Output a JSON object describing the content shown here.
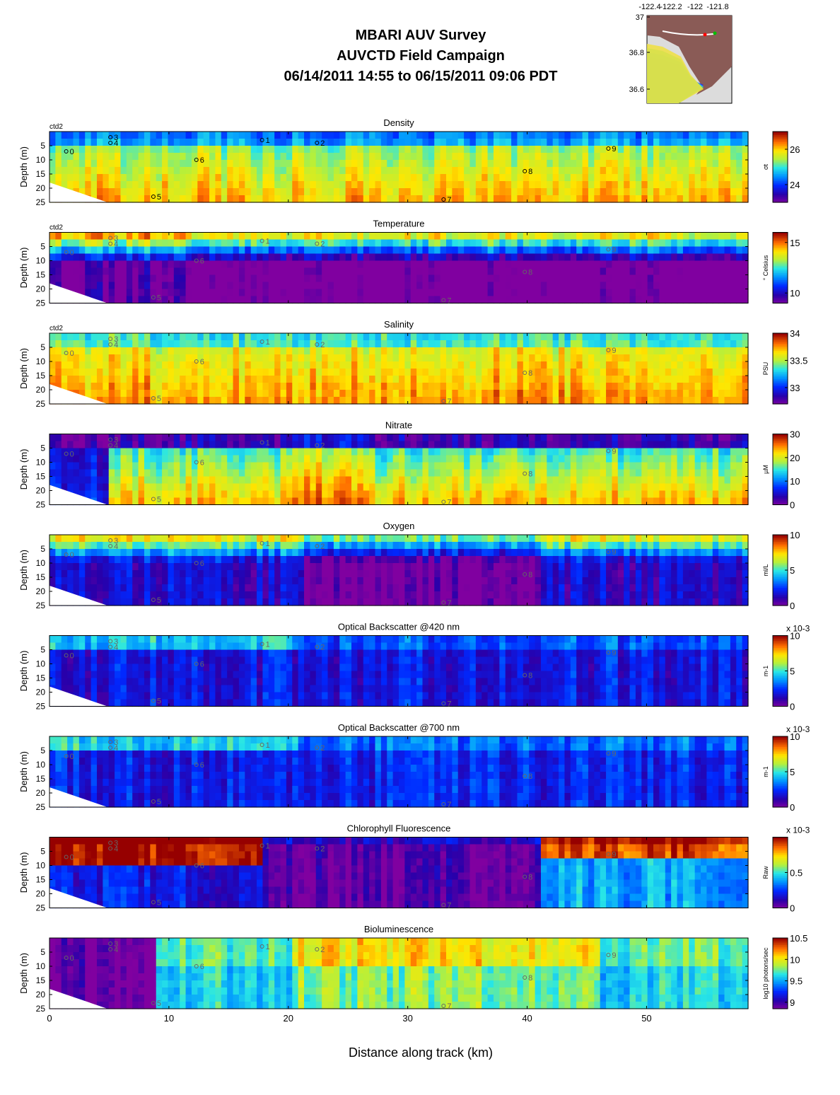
{
  "header": {
    "title_line1": "MBARI AUV Survey",
    "title_line2": "AUVCTD Field Campaign",
    "title_line3": "06/14/2011 14:55  to 06/15/2011 09:06 PDT"
  },
  "inset_map": {
    "lon_ticks": [
      "-122.4",
      "-122.2",
      "-122",
      "-121.8"
    ],
    "lat_ticks": [
      "37",
      "36.8",
      "36.6"
    ],
    "colors": {
      "land": "#8a5b56",
      "deep": "#dcdcdc",
      "track": "#ffffff",
      "start": "#ff0000",
      "end": "#00c000"
    }
  },
  "chart_data": [
    {
      "type": "heatmap",
      "title": "Density",
      "colorbar_label": "σt",
      "colorbar_ticks": [
        "26",
        "24"
      ],
      "colorbar_range": [
        23,
        27
      ],
      "colormap": "jet-purple",
      "base_color": "#f2b23a",
      "source_label": "ctd2"
    },
    {
      "type": "heatmap",
      "title": "Temperature",
      "colorbar_label": "° Celsius",
      "colorbar_ticks": [
        "15",
        "10"
      ],
      "colorbar_range": [
        9,
        16
      ],
      "colormap": "jet-purple",
      "base_color": "#2a1fb0",
      "source_label": "ctd2"
    },
    {
      "type": "heatmap",
      "title": "Salinity",
      "colorbar_label": "PSU",
      "colorbar_ticks": [
        "34",
        "33.5",
        "33"
      ],
      "colorbar_range": [
        32.7,
        34
      ],
      "colormap": "jet-purple",
      "base_color": "#f04a12",
      "source_label": "ctd2"
    },
    {
      "type": "heatmap",
      "title": "Nitrate",
      "colorbar_label": "µM",
      "colorbar_ticks": [
        "30",
        "20",
        "10",
        "0"
      ],
      "colorbar_range": [
        0,
        30
      ],
      "colormap": "jet-purple",
      "base_color": "#f5e04a"
    },
    {
      "type": "heatmap",
      "title": "Oxygen",
      "colorbar_label": "ml/L",
      "colorbar_ticks": [
        "10",
        "5",
        "0"
      ],
      "colorbar_range": [
        0,
        10
      ],
      "colormap": "jet-purple",
      "base_color": "#1f4fe8"
    },
    {
      "type": "heatmap",
      "title": "Optical Backscatter @420 nm",
      "colorbar_label": "m-1",
      "colorbar_ticks": [
        "10",
        "5",
        "0"
      ],
      "colorbar_range": [
        0,
        10
      ],
      "colorbar_multiplier": "x 10-3",
      "colormap": "jet-purple",
      "base_color": "#3d18a8"
    },
    {
      "type": "heatmap",
      "title": "Optical Backscatter @700 nm",
      "colorbar_label": "m-1",
      "colorbar_ticks": [
        "10",
        "5",
        "0"
      ],
      "colorbar_range": [
        0,
        10
      ],
      "colorbar_multiplier": "x 10-3",
      "colormap": "jet-purple",
      "base_color": "#4a1aa8"
    },
    {
      "type": "heatmap",
      "title": "Chlorophyll Fluorescence",
      "colorbar_label": "Raw",
      "colorbar_ticks": [
        "0.5",
        "0"
      ],
      "colorbar_range": [
        0,
        1
      ],
      "colorbar_multiplier": "x 10-3",
      "colormap": "jet-purple",
      "base_color": "#8a1a9a"
    },
    {
      "type": "heatmap",
      "title": "Bioluminescence",
      "colorbar_label": "log10 photons/sec",
      "colorbar_ticks": [
        "10.5",
        "10",
        "9.5",
        "9"
      ],
      "colorbar_range": [
        8.85,
        10.5
      ],
      "colormap": "jet-purple",
      "base_color": "#b0189e"
    }
  ],
  "axes": {
    "ylabel": "Depth (m)",
    "y_ticks": [
      "5",
      "10",
      "15",
      "20",
      "25"
    ],
    "y_range": [
      0,
      25
    ],
    "x_ticks": [
      "0",
      "10",
      "20",
      "30",
      "40",
      "50"
    ],
    "x_range": [
      0,
      58.5
    ],
    "xlabel": "Distance along track (km)"
  },
  "stations": [
    {
      "id": "0",
      "km": 1.4,
      "depth": 7
    },
    {
      "id": "1",
      "km": 17.8,
      "depth": 3
    },
    {
      "id": "2",
      "km": 22.4,
      "depth": 4
    },
    {
      "id": "3",
      "km": 5.1,
      "depth": 2
    },
    {
      "id": "4",
      "km": 5.1,
      "depth": 4
    },
    {
      "id": "5",
      "km": 8.7,
      "depth": 23
    },
    {
      "id": "6",
      "km": 12.3,
      "depth": 10
    },
    {
      "id": "7",
      "km": 33.0,
      "depth": 24
    },
    {
      "id": "8",
      "km": 39.8,
      "depth": 14
    },
    {
      "id": "9",
      "km": 46.8,
      "depth": 6
    }
  ]
}
